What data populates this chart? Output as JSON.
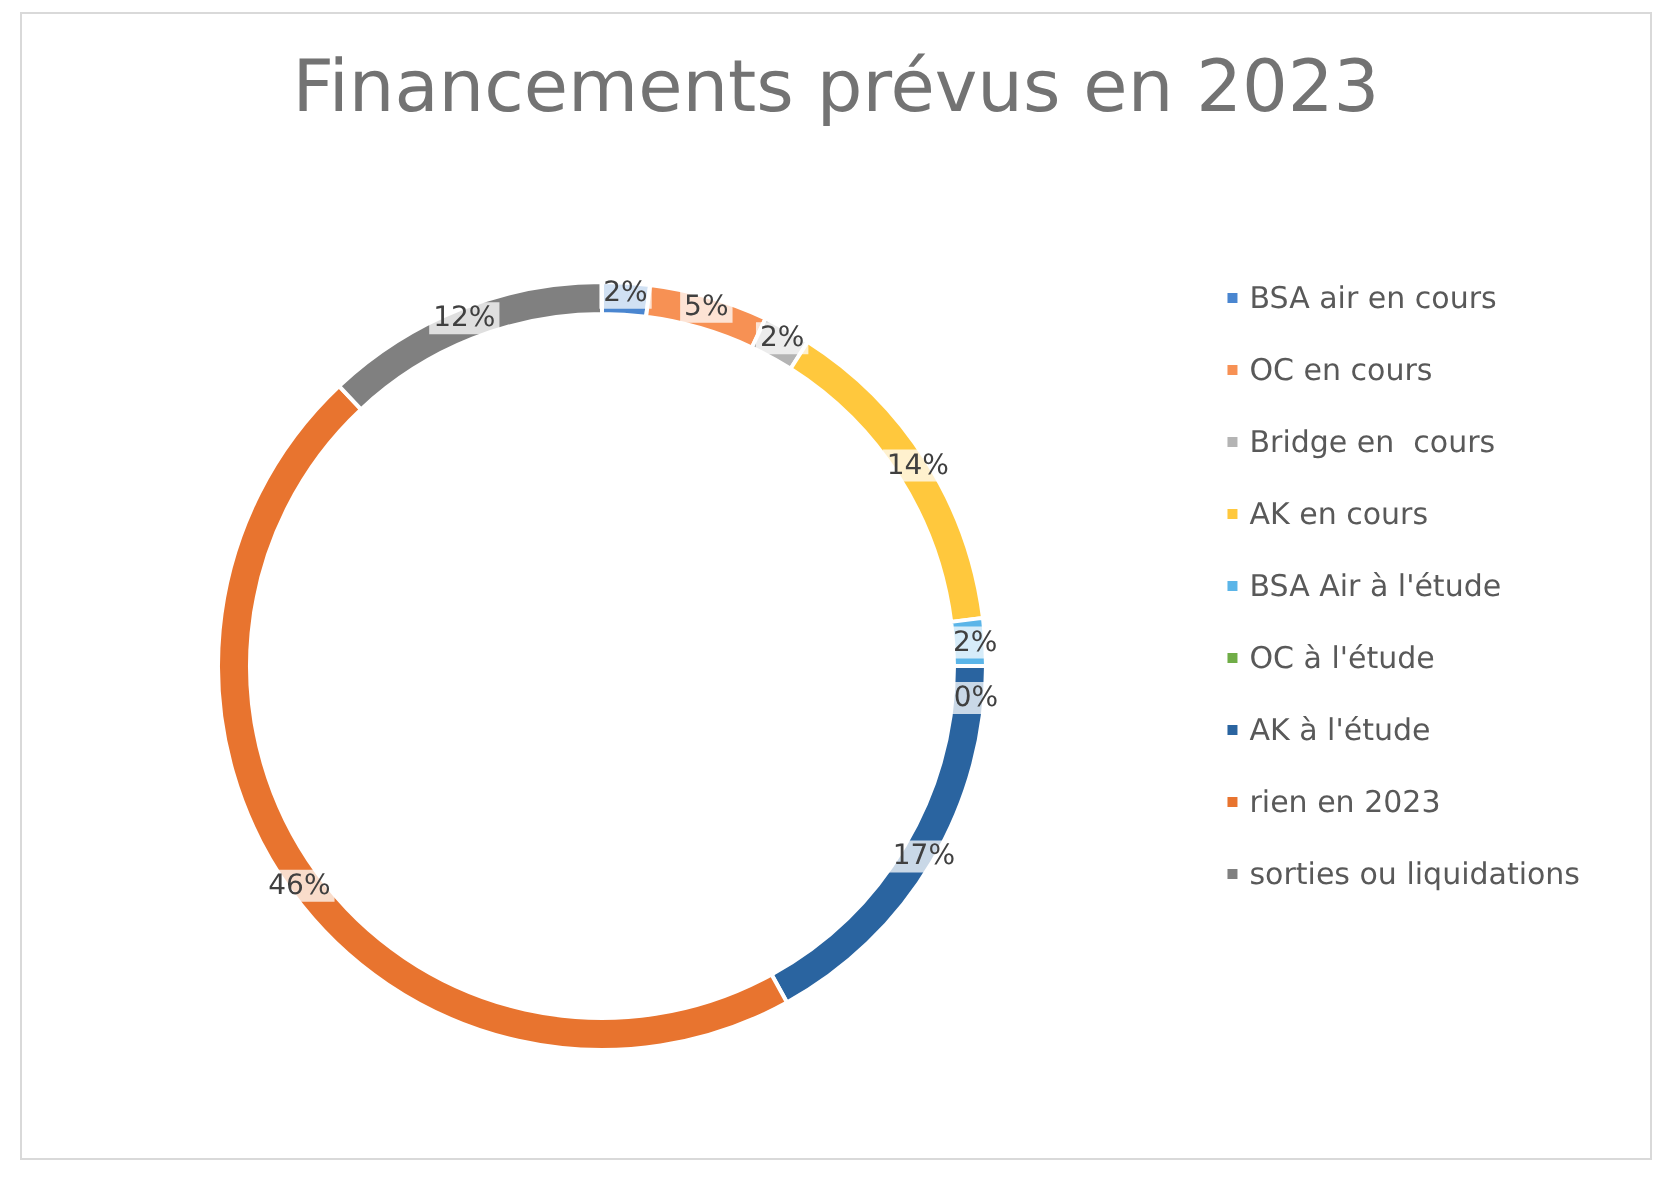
{
  "chart_data": {
    "type": "donut",
    "title": "Financements prévus en 2023",
    "categories": [
      "BSA air en cours",
      "OC en cours",
      "Bridge en  cours",
      "AK en cours",
      "BSA Air à l'étude",
      "OC à l'étude",
      "AK à l'étude",
      "rien en 2023",
      "sorties ou liquidations"
    ],
    "values": [
      2,
      5,
      2,
      14,
      2,
      0,
      17,
      46,
      12
    ],
    "value_labels": [
      "2%",
      "5%",
      "2%",
      "14%",
      "2%",
      "0%",
      "17%",
      "46%",
      "12%"
    ],
    "colors": [
      "#4a86d0",
      "#f79154",
      "#b4b4b4",
      "#ffc83d",
      "#5bb5e8",
      "#70ad47",
      "#2a64a0",
      "#e8742f",
      "#808080"
    ],
    "legend": "right"
  }
}
